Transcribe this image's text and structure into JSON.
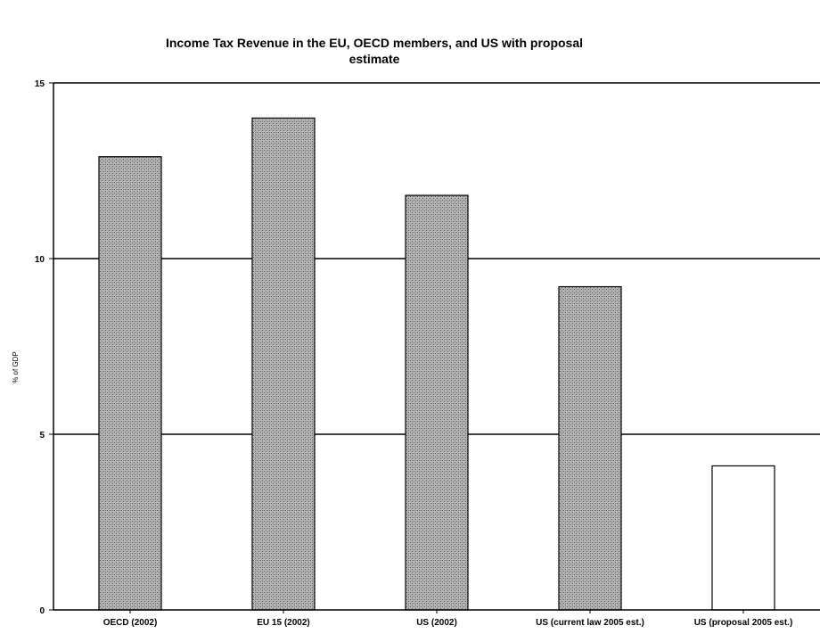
{
  "chart_data": {
    "type": "bar",
    "title_line1": "Income Tax Revenue in the EU, OECD members, and US with proposal",
    "title_line2": "estimate",
    "ylabel": "% of GDP",
    "xlabel": "",
    "ylim": [
      0,
      15
    ],
    "yticks": [
      "0",
      "5",
      "10",
      "15"
    ],
    "grid": true,
    "categories": [
      "OECD (2002)",
      "EU 15 (2002)",
      "US (2002)",
      "US (current law 2005 est.)",
      "US (proposal 2005 est.)"
    ],
    "values": [
      12.9,
      14.0,
      11.8,
      9.2,
      4.1
    ],
    "bar_styles": [
      "hatched",
      "hatched",
      "hatched",
      "hatched",
      "white"
    ],
    "colors": {
      "bar_fill": "#a9a9a9",
      "bar_outline": "#000000",
      "proposal_fill": "#ffffff"
    }
  }
}
